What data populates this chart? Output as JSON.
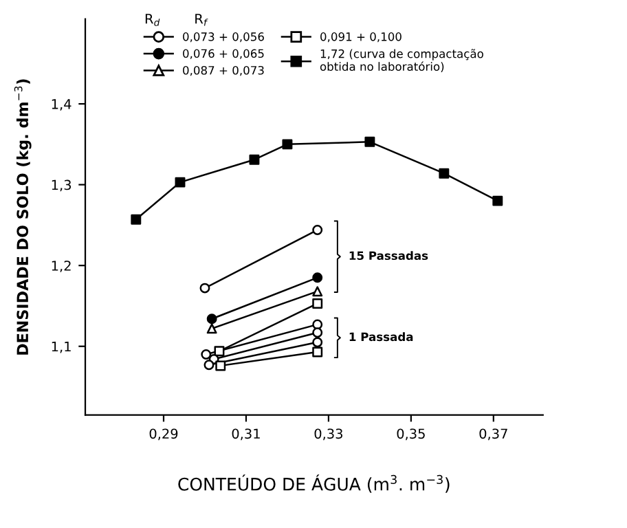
{
  "chart_data": {
    "type": "line",
    "xlabel": "CONTEÚDO DE ÁGUA (m$^{3}$. m$^{−3}$)",
    "ylabel": "DENSIDADE DO SOLO (kg. dm$^{−3}$)",
    "legend_title": "R$_{d}$        R$_{f}$",
    "xlim": [
      0.271,
      0.382
    ],
    "ylim": [
      1.015,
      1.505
    ],
    "xticks": [
      {
        "value": 0.29,
        "label": "0,29"
      },
      {
        "value": 0.31,
        "label": "0,31"
      },
      {
        "value": 0.33,
        "label": "0,33"
      },
      {
        "value": 0.35,
        "label": "0,35"
      },
      {
        "value": 0.37,
        "label": "0,37"
      }
    ],
    "yticks": [
      {
        "value": 1.1,
        "label": "1,1"
      },
      {
        "value": 1.2,
        "label": "1,2"
      },
      {
        "value": 1.3,
        "label": "1,3"
      },
      {
        "value": 1.4,
        "label": "1,4"
      }
    ],
    "grid": false,
    "legend": "top",
    "series": [
      {
        "name": "0,073 + 0,056",
        "color": "#000000",
        "marker": "circle",
        "colors": [
          "#ffffff",
          "#ffffff"
        ],
        "x": [
          0.3,
          0.3273
        ],
        "values": [
          1.172,
          1.244
        ]
      },
      {
        "name": "0,076 + 0,065",
        "color": "#000000",
        "marker": "circle",
        "colors": [
          "#000000",
          "#000000"
        ],
        "x": [
          0.3017,
          0.3273
        ],
        "values": [
          1.134,
          1.185
        ]
      },
      {
        "name": "0,087 + 0,073",
        "color": "#000000",
        "marker": "triangle",
        "colors": [
          "#ffffff",
          "#ffffff"
        ],
        "x": [
          0.3017,
          0.3273
        ],
        "values": [
          1.122,
          1.168
        ]
      },
      {
        "name": "0,091 + 0,100",
        "color": "#000000",
        "marker": "square",
        "colors": [
          "#ffffff",
          "#ffffff"
        ],
        "x": [
          0.3035,
          0.3273
        ],
        "values": [
          1.094,
          1.153
        ]
      },
      {
        "name": "1,72 (curva de compactação\nobtida no laboratório)",
        "color": "#000000",
        "marker": "square",
        "colors": [
          "#000000",
          "#000000",
          "#000000",
          "#000000",
          "#000000",
          "#000000",
          "#000000"
        ],
        "x": [
          0.2833,
          0.294,
          0.312,
          0.32,
          0.34,
          0.358,
          0.371
        ],
        "values": [
          1.257,
          1.303,
          1.331,
          1.35,
          1.353,
          1.314,
          1.28
        ]
      },
      {
        "color": "#000000",
        "marker": "circle",
        "colors": [
          "#ffffff",
          "#ffffff"
        ],
        "x": [
          0.3003,
          0.3273
        ],
        "values": [
          1.09,
          1.127
        ]
      },
      {
        "color": "#000000",
        "marker": "circle",
        "colors": [
          "#ffffff",
          "#ffffff"
        ],
        "x": [
          0.3022,
          0.3273
        ],
        "values": [
          1.084,
          1.117
        ]
      },
      {
        "color": "#000000",
        "marker": "circle",
        "colors": [
          "#ffffff",
          "#ffffff"
        ],
        "x": [
          0.301,
          0.3273
        ],
        "values": [
          1.077,
          1.105
        ]
      },
      {
        "color": "#000000",
        "marker": "square",
        "colors": [
          "#ffffff",
          "#ffffff"
        ],
        "x": [
          0.3038,
          0.3273
        ],
        "values": [
          1.076,
          1.093
        ]
      }
    ],
    "annotations": [
      "15 Passadas",
      "1 Passada"
    ]
  }
}
